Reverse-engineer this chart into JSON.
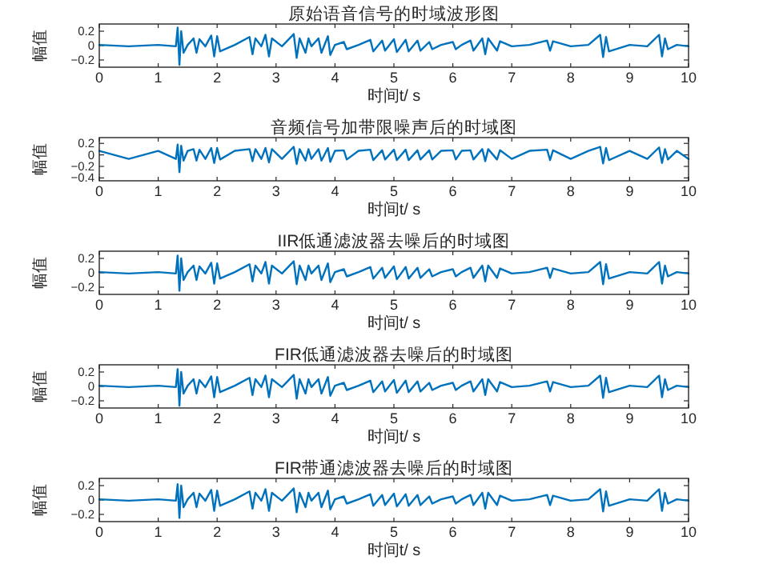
{
  "chart_data": [
    {
      "type": "line",
      "title": "原始语音信号的时域波形图",
      "xlabel": "时间t/ s",
      "ylabel": "幅值",
      "xlim": [
        0,
        10
      ],
      "xticks": [
        0,
        1,
        2,
        3,
        4,
        5,
        6,
        7,
        8,
        9,
        10
      ],
      "ylim": [
        -0.3,
        0.3
      ],
      "yticks": [
        -0.2,
        0,
        0.2
      ],
      "x": [
        0,
        0.5,
        1.0,
        1.3,
        1.33,
        1.36,
        1.39,
        1.43,
        1.5,
        1.6,
        1.65,
        1.7,
        1.8,
        1.9,
        1.95,
        2.0,
        2.05,
        2.3,
        2.55,
        2.6,
        2.65,
        2.75,
        2.82,
        2.88,
        2.93,
        3.1,
        3.3,
        3.35,
        3.4,
        3.5,
        3.55,
        3.6,
        3.72,
        3.77,
        3.88,
        3.92,
        4.0,
        4.15,
        4.2,
        4.4,
        4.6,
        4.65,
        4.8,
        4.85,
        5.0,
        5.05,
        5.2,
        5.25,
        5.4,
        5.45,
        5.6,
        5.65,
        5.8,
        6.0,
        6.05,
        6.15,
        6.3,
        6.35,
        6.5,
        6.55,
        6.6,
        6.75,
        6.8,
        7.0,
        7.3,
        7.6,
        7.65,
        7.7,
        8.0,
        8.3,
        8.5,
        8.55,
        8.6,
        8.65,
        9.0,
        9.3,
        9.5,
        9.55,
        9.6,
        9.65,
        9.8,
        10.0
      ],
      "series": [
        {
          "color": "#0072bd",
          "values": [
            0.01,
            -0.01,
            0.01,
            -0.01,
            0.25,
            -0.27,
            0.2,
            -0.1,
            0.01,
            0.1,
            -0.1,
            0.09,
            -0.01,
            0.14,
            -0.15,
            0.13,
            -0.08,
            0.01,
            0.12,
            -0.12,
            0.1,
            -0.01,
            0.15,
            -0.15,
            0.1,
            -0.01,
            0.16,
            -0.17,
            0.1,
            -0.1,
            0.1,
            -0.01,
            0.1,
            -0.1,
            0.13,
            -0.13,
            0.01,
            0.05,
            -0.05,
            0.01,
            0.08,
            -0.08,
            0.07,
            -0.07,
            0.09,
            -0.09,
            0.08,
            -0.08,
            0.07,
            -0.07,
            0.05,
            -0.05,
            0.01,
            0.05,
            -0.05,
            0.01,
            0.07,
            -0.07,
            0.1,
            -0.12,
            0.1,
            -0.07,
            0.06,
            -0.01,
            0.01,
            0.07,
            -0.07,
            0.06,
            -0.01,
            0.01,
            0.15,
            -0.16,
            0.12,
            -0.08,
            0.01,
            -0.01,
            0.15,
            -0.15,
            0.1,
            -0.05,
            0.01,
            -0.01
          ]
        }
      ]
    },
    {
      "type": "line",
      "title": "音频信号加带限噪声后的时域图",
      "xlabel": "时间t/ s",
      "ylabel": "幅值",
      "xlim": [
        0,
        10
      ],
      "xticks": [
        0,
        1,
        2,
        3,
        4,
        5,
        6,
        7,
        8,
        9,
        10
      ],
      "ylim": [
        -0.45,
        0.3
      ],
      "yticks": [
        -0.4,
        -0.2,
        0,
        0.2
      ],
      "x": [
        0,
        0.5,
        1.0,
        1.3,
        1.33,
        1.36,
        1.39,
        1.43,
        1.5,
        1.6,
        1.65,
        1.7,
        1.8,
        1.9,
        1.95,
        2.0,
        2.05,
        2.3,
        2.55,
        2.6,
        2.65,
        2.75,
        2.82,
        2.88,
        2.93,
        3.1,
        3.3,
        3.35,
        3.4,
        3.5,
        3.55,
        3.6,
        3.72,
        3.77,
        3.88,
        3.92,
        4.0,
        4.15,
        4.2,
        4.4,
        4.6,
        4.65,
        4.8,
        4.85,
        5.0,
        5.05,
        5.2,
        5.25,
        5.4,
        5.45,
        5.6,
        5.65,
        5.8,
        6.0,
        6.05,
        6.15,
        6.3,
        6.35,
        6.5,
        6.55,
        6.6,
        6.75,
        6.8,
        7.0,
        7.3,
        7.6,
        7.65,
        7.7,
        8.0,
        8.3,
        8.5,
        8.55,
        8.6,
        8.65,
        9.0,
        9.3,
        9.5,
        9.55,
        9.6,
        9.65,
        9.8,
        10.0
      ],
      "series": [
        {
          "color": "#0072bd",
          "values": [
            0.07,
            -0.07,
            0.07,
            -0.07,
            0.18,
            -0.3,
            0.16,
            -0.1,
            0.07,
            0.1,
            -0.1,
            0.09,
            -0.07,
            0.12,
            -0.14,
            0.12,
            -0.08,
            0.07,
            0.1,
            -0.11,
            0.1,
            -0.07,
            0.12,
            -0.13,
            0.1,
            -0.07,
            0.14,
            -0.16,
            0.1,
            -0.1,
            0.1,
            -0.07,
            0.1,
            -0.1,
            0.12,
            -0.12,
            0.07,
            0.08,
            -0.08,
            0.07,
            0.09,
            -0.09,
            0.08,
            -0.08,
            0.09,
            -0.09,
            0.09,
            -0.09,
            0.08,
            -0.08,
            0.08,
            -0.08,
            0.07,
            0.08,
            -0.08,
            0.07,
            0.08,
            -0.08,
            0.1,
            -0.11,
            0.1,
            -0.08,
            0.08,
            -0.07,
            0.07,
            0.09,
            -0.09,
            0.08,
            -0.07,
            0.07,
            0.14,
            -0.15,
            0.12,
            -0.09,
            0.07,
            -0.07,
            0.13,
            -0.14,
            0.1,
            -0.08,
            0.07,
            -0.07
          ]
        }
      ]
    },
    {
      "type": "line",
      "title": "IIR低通滤波器去噪后的时域图",
      "xlabel": "时间t/ s",
      "ylabel": "幅值",
      "xlim": [
        0,
        10
      ],
      "xticks": [
        0,
        1,
        2,
        3,
        4,
        5,
        6,
        7,
        8,
        9,
        10
      ],
      "ylim": [
        -0.3,
        0.3
      ],
      "yticks": [
        -0.2,
        0,
        0.2
      ],
      "x": [
        0,
        0.5,
        1.0,
        1.3,
        1.33,
        1.36,
        1.39,
        1.43,
        1.5,
        1.6,
        1.65,
        1.7,
        1.8,
        1.9,
        1.95,
        2.0,
        2.05,
        2.3,
        2.55,
        2.6,
        2.65,
        2.75,
        2.82,
        2.88,
        2.93,
        3.1,
        3.3,
        3.35,
        3.4,
        3.5,
        3.55,
        3.6,
        3.72,
        3.77,
        3.88,
        3.92,
        4.0,
        4.15,
        4.2,
        4.4,
        4.6,
        4.65,
        4.8,
        4.85,
        5.0,
        5.05,
        5.2,
        5.25,
        5.4,
        5.45,
        5.6,
        5.65,
        5.8,
        6.0,
        6.05,
        6.15,
        6.3,
        6.35,
        6.5,
        6.55,
        6.6,
        6.75,
        6.8,
        7.0,
        7.3,
        7.6,
        7.65,
        7.7,
        8.0,
        8.3,
        8.5,
        8.55,
        8.6,
        8.65,
        9.0,
        9.3,
        9.5,
        9.55,
        9.6,
        9.65,
        9.8,
        10.0
      ],
      "series": [
        {
          "color": "#0072bd",
          "values": [
            0.01,
            -0.01,
            0.01,
            -0.01,
            0.24,
            -0.25,
            0.2,
            -0.1,
            0.01,
            0.1,
            -0.1,
            0.09,
            -0.01,
            0.14,
            -0.15,
            0.13,
            -0.08,
            0.01,
            0.12,
            -0.12,
            0.1,
            -0.01,
            0.15,
            -0.15,
            0.1,
            -0.01,
            0.16,
            -0.16,
            0.1,
            -0.1,
            0.1,
            -0.01,
            0.1,
            -0.1,
            0.13,
            -0.13,
            0.01,
            0.05,
            -0.05,
            0.01,
            0.08,
            -0.08,
            0.07,
            -0.07,
            0.09,
            -0.09,
            0.08,
            -0.08,
            0.07,
            -0.07,
            0.05,
            -0.05,
            0.01,
            0.05,
            -0.05,
            0.01,
            0.07,
            -0.07,
            0.1,
            -0.12,
            0.1,
            -0.07,
            0.06,
            -0.01,
            0.01,
            0.07,
            -0.07,
            0.06,
            -0.01,
            0.01,
            0.15,
            -0.16,
            0.12,
            -0.08,
            0.01,
            -0.01,
            0.15,
            -0.15,
            0.1,
            -0.05,
            0.01,
            -0.01
          ]
        }
      ]
    },
    {
      "type": "line",
      "title": "FIR低通滤波器去噪后的时域图",
      "xlabel": "时间t/ s",
      "ylabel": "幅值",
      "xlim": [
        0,
        10
      ],
      "xticks": [
        0,
        1,
        2,
        3,
        4,
        5,
        6,
        7,
        8,
        9,
        10
      ],
      "ylim": [
        -0.3,
        0.3
      ],
      "yticks": [
        -0.2,
        0,
        0.2
      ],
      "x": [
        0,
        0.5,
        1.0,
        1.3,
        1.33,
        1.36,
        1.39,
        1.43,
        1.5,
        1.6,
        1.65,
        1.7,
        1.8,
        1.9,
        1.95,
        2.0,
        2.05,
        2.3,
        2.55,
        2.6,
        2.65,
        2.75,
        2.82,
        2.88,
        2.93,
        3.1,
        3.3,
        3.35,
        3.4,
        3.5,
        3.55,
        3.6,
        3.72,
        3.77,
        3.88,
        3.92,
        4.0,
        4.15,
        4.2,
        4.4,
        4.6,
        4.65,
        4.8,
        4.85,
        5.0,
        5.05,
        5.2,
        5.25,
        5.4,
        5.45,
        5.6,
        5.65,
        5.8,
        6.0,
        6.05,
        6.15,
        6.3,
        6.35,
        6.5,
        6.55,
        6.6,
        6.75,
        6.8,
        7.0,
        7.3,
        7.6,
        7.65,
        7.7,
        8.0,
        8.3,
        8.5,
        8.55,
        8.6,
        8.65,
        9.0,
        9.3,
        9.5,
        9.55,
        9.6,
        9.65,
        9.8,
        10.0
      ],
      "series": [
        {
          "color": "#0072bd",
          "values": [
            0.01,
            -0.01,
            0.01,
            -0.01,
            0.24,
            -0.27,
            0.2,
            -0.1,
            0.01,
            0.1,
            -0.1,
            0.09,
            -0.01,
            0.14,
            -0.15,
            0.13,
            -0.08,
            0.01,
            0.12,
            -0.12,
            0.1,
            -0.01,
            0.15,
            -0.15,
            0.1,
            -0.01,
            0.16,
            -0.17,
            0.1,
            -0.1,
            0.1,
            -0.01,
            0.1,
            -0.1,
            0.13,
            -0.13,
            0.01,
            0.05,
            -0.05,
            0.01,
            0.08,
            -0.08,
            0.07,
            -0.07,
            0.09,
            -0.09,
            0.08,
            -0.08,
            0.07,
            -0.07,
            0.05,
            -0.05,
            0.01,
            0.05,
            -0.05,
            0.01,
            0.07,
            -0.07,
            0.1,
            -0.12,
            0.1,
            -0.07,
            0.06,
            -0.01,
            0.01,
            0.07,
            -0.07,
            0.06,
            -0.01,
            0.01,
            0.15,
            -0.16,
            0.12,
            -0.08,
            0.01,
            -0.01,
            0.15,
            -0.15,
            0.1,
            -0.05,
            0.01,
            -0.01
          ]
        }
      ]
    },
    {
      "type": "line",
      "title": "FIR带通滤波器去噪后的时域图",
      "xlabel": "时间t/ s",
      "ylabel": "幅值",
      "xlim": [
        0,
        10
      ],
      "xticks": [
        0,
        1,
        2,
        3,
        4,
        5,
        6,
        7,
        8,
        9,
        10
      ],
      "ylim": [
        -0.3,
        0.3
      ],
      "yticks": [
        -0.2,
        0,
        0.2
      ],
      "x": [
        0,
        0.5,
        1.0,
        1.3,
        1.33,
        1.36,
        1.39,
        1.43,
        1.5,
        1.6,
        1.65,
        1.7,
        1.8,
        1.9,
        1.95,
        2.0,
        2.05,
        2.3,
        2.55,
        2.6,
        2.65,
        2.75,
        2.82,
        2.88,
        2.93,
        3.1,
        3.3,
        3.35,
        3.4,
        3.5,
        3.55,
        3.6,
        3.72,
        3.77,
        3.88,
        3.92,
        4.0,
        4.15,
        4.2,
        4.4,
        4.6,
        4.65,
        4.8,
        4.85,
        5.0,
        5.05,
        5.2,
        5.25,
        5.4,
        5.45,
        5.6,
        5.65,
        5.8,
        6.0,
        6.05,
        6.15,
        6.3,
        6.35,
        6.5,
        6.55,
        6.6,
        6.75,
        6.8,
        7.0,
        7.3,
        7.6,
        7.65,
        7.7,
        8.0,
        8.3,
        8.5,
        8.55,
        8.6,
        8.65,
        9.0,
        9.3,
        9.5,
        9.55,
        9.6,
        9.65,
        9.8,
        10.0
      ],
      "series": [
        {
          "color": "#0072bd",
          "values": [
            0.01,
            -0.01,
            0.01,
            -0.01,
            0.22,
            -0.25,
            0.2,
            -0.1,
            0.01,
            0.1,
            -0.1,
            0.09,
            -0.01,
            0.14,
            -0.15,
            0.13,
            -0.08,
            0.01,
            0.12,
            -0.12,
            0.1,
            -0.01,
            0.15,
            -0.15,
            0.1,
            -0.01,
            0.16,
            -0.17,
            0.1,
            -0.1,
            0.1,
            -0.01,
            0.1,
            -0.1,
            0.13,
            -0.13,
            0.01,
            0.05,
            -0.05,
            0.01,
            0.08,
            -0.08,
            0.07,
            -0.07,
            0.09,
            -0.09,
            0.08,
            -0.08,
            0.07,
            -0.07,
            0.05,
            -0.05,
            0.01,
            0.05,
            -0.05,
            0.01,
            0.07,
            -0.07,
            0.1,
            -0.12,
            0.1,
            -0.07,
            0.06,
            -0.01,
            0.01,
            0.07,
            -0.07,
            0.06,
            -0.01,
            0.01,
            0.15,
            -0.16,
            0.12,
            -0.08,
            0.01,
            -0.01,
            0.15,
            -0.15,
            0.1,
            -0.05,
            0.01,
            -0.01
          ]
        }
      ]
    }
  ]
}
